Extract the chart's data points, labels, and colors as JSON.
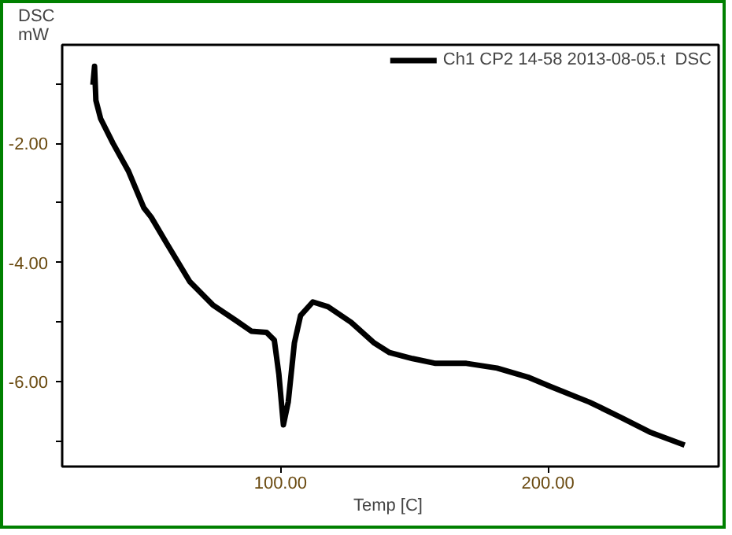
{
  "chart_data": {
    "type": "line",
    "xlabel": "Temp  [C]",
    "ylabel": "DSC\nmW",
    "legend": "top",
    "marker": "none",
    "line_style": "solid",
    "grid": false,
    "xlim": [
      18.4,
      263.8
    ],
    "ylim": [
      -7.42,
      -0.35
    ],
    "xticks": [
      {
        "value": 100,
        "label": "100.00"
      },
      {
        "value": 200,
        "label": "200.00"
      }
    ],
    "yticks": [
      {
        "value": -1,
        "label": null
      },
      {
        "value": -2,
        "label": "-2.00"
      },
      {
        "value": -3,
        "label": null
      },
      {
        "value": -4,
        "label": "-4.00"
      },
      {
        "value": -5,
        "label": null
      },
      {
        "value": -6,
        "label": "-6.00"
      },
      {
        "value": -7,
        "label": null
      }
    ],
    "series": [
      {
        "name": "Ch1 CP2 14-58 2013-08-05.t  DSC",
        "color": "#000000",
        "x": [
          29.9,
          30.5,
          31.0,
          32.8,
          37.4,
          43.1,
          48.9,
          51.7,
          57.5,
          66.1,
          74.7,
          83.3,
          89.1,
          94.8,
          97.7,
          99.4,
          101.1,
          102.9,
          105.2,
          107.5,
          112.1,
          117.8,
          126.4,
          135.1,
          140.8,
          149.4,
          158.0,
          169.5,
          181.0,
          192.5,
          201.1,
          215.5,
          227.0,
          238.5,
          251.1
        ],
        "values": [
          -1.02,
          -0.71,
          -1.28,
          -1.59,
          -2.0,
          -2.46,
          -3.08,
          -3.24,
          -3.68,
          -4.32,
          -4.71,
          -4.97,
          -5.15,
          -5.17,
          -5.3,
          -5.87,
          -6.72,
          -6.34,
          -5.35,
          -4.89,
          -4.66,
          -4.74,
          -5.0,
          -5.35,
          -5.51,
          -5.61,
          -5.69,
          -5.69,
          -5.77,
          -5.92,
          -6.08,
          -6.34,
          -6.59,
          -6.85,
          -7.06
        ]
      }
    ]
  }
}
